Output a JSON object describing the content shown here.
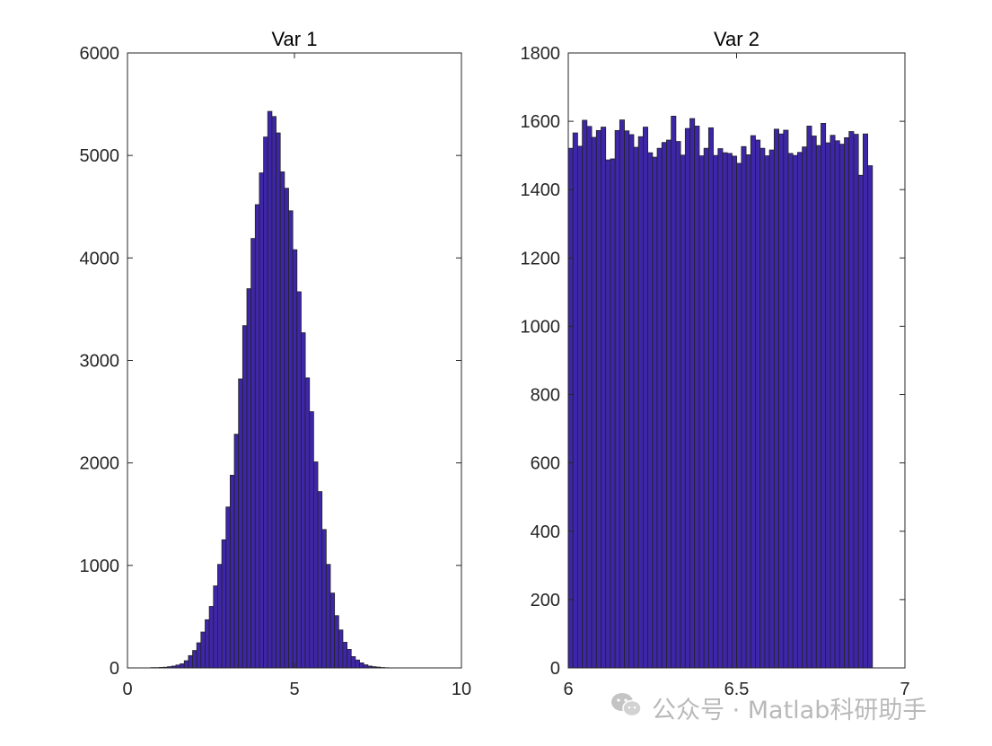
{
  "chart_data": [
    {
      "type": "bar",
      "title": "Var 1",
      "xlim": [
        0,
        10
      ],
      "ylim": [
        0,
        6000
      ],
      "xticks": [
        "0",
        "5",
        "10"
      ],
      "yticks": [
        "0",
        "1000",
        "2000",
        "3000",
        "4000",
        "5000",
        "6000"
      ],
      "bin_start": 0.7,
      "bin_width": 0.125,
      "values": [
        3,
        3,
        5,
        7,
        12,
        18,
        28,
        40,
        70,
        120,
        170,
        245,
        350,
        470,
        600,
        800,
        1010,
        1250,
        1570,
        1880,
        2280,
        2820,
        3340,
        3700,
        4190,
        4520,
        4830,
        5180,
        5430,
        5380,
        5220,
        4840,
        4680,
        4460,
        4080,
        3670,
        3270,
        2830,
        2500,
        2010,
        1720,
        1350,
        1010,
        730,
        510,
        370,
        250,
        180,
        110,
        77,
        49,
        30,
        18,
        12,
        8,
        4,
        2
      ]
    },
    {
      "type": "bar",
      "title": "Var 2",
      "xlim": [
        6,
        7
      ],
      "ylim": [
        0,
        1800
      ],
      "xticks": [
        "6",
        "6.5",
        "7"
      ],
      "yticks": [
        "0",
        "200",
        "400",
        "600",
        "800",
        "1000",
        "1200",
        "1400",
        "1600",
        "1800"
      ],
      "bin_start": 6,
      "bin_width": 0.0139,
      "values": [
        1521,
        1566,
        1527,
        1603,
        1585,
        1553,
        1573,
        1583,
        1487,
        1490,
        1573,
        1604,
        1572,
        1561,
        1524,
        1555,
        1583,
        1508,
        1495,
        1521,
        1538,
        1545,
        1615,
        1541,
        1501,
        1579,
        1608,
        1586,
        1499,
        1521,
        1581,
        1500,
        1520,
        1508,
        1506,
        1498,
        1477,
        1526,
        1502,
        1558,
        1545,
        1521,
        1499,
        1516,
        1577,
        1563,
        1574,
        1506,
        1500,
        1509,
        1525,
        1586,
        1557,
        1529,
        1594,
        1537,
        1559,
        1543,
        1533,
        1552,
        1570,
        1562,
        1442,
        1563,
        1470
      ]
    }
  ],
  "colors": {
    "bar_fill": "#3e26a8",
    "bar_edge": "#222222",
    "axis": "#262626"
  },
  "watermark": {
    "icon": "wechat-icon",
    "text": "公众号 · Matlab科研助手"
  }
}
